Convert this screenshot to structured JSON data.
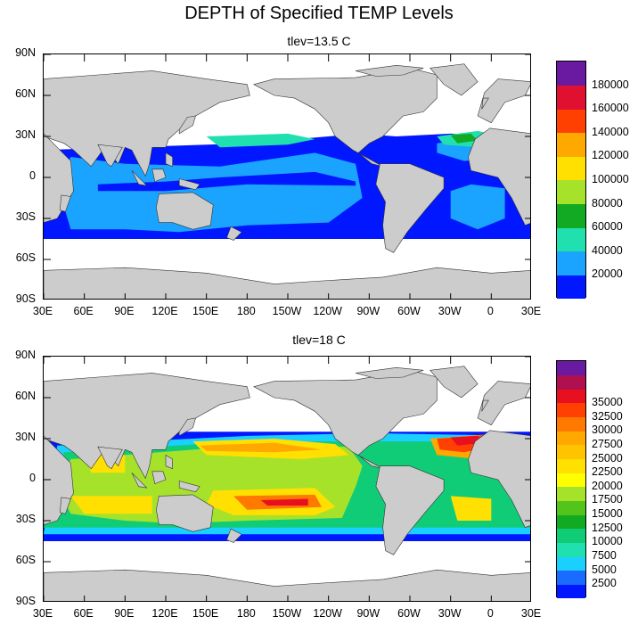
{
  "title": "DEPTH of Specified TEMP Levels",
  "panels": [
    {
      "subtitle": "tlev=13.5 C",
      "lat_labels": [
        "90N",
        "60N",
        "30N",
        "0",
        "30S",
        "60S",
        "90S"
      ],
      "lon_labels": [
        "30E",
        "60E",
        "90E",
        "120E",
        "150E",
        "180",
        "150W",
        "120W",
        "90W",
        "60W",
        "30W",
        "0",
        "30E"
      ],
      "colorbar": {
        "colors": [
          "#0017ff",
          "#1aa3ff",
          "#21e0b0",
          "#11aa22",
          "#a6e22a",
          "#ffe000",
          "#ffa800",
          "#ff4000",
          "#e01030",
          "#6a1aa0"
        ],
        "labels": [
          "20000",
          "40000",
          "60000",
          "80000",
          "100000",
          "120000",
          "140000",
          "160000",
          "180000"
        ]
      }
    },
    {
      "subtitle": "tlev=18 C",
      "lat_labels": [
        "90N",
        "60N",
        "30N",
        "0",
        "30S",
        "60S",
        "90S"
      ],
      "lon_labels": [
        "30E",
        "60E",
        "90E",
        "120E",
        "150E",
        "180",
        "150W",
        "120W",
        "90W",
        "60W",
        "30W",
        "0",
        "30E"
      ],
      "colorbar": {
        "colors": [
          "#0017ff",
          "#1a6bff",
          "#1ad0ff",
          "#21e0b0",
          "#11cc77",
          "#11aa22",
          "#52c41a",
          "#a6e22a",
          "#ffff00",
          "#ffe000",
          "#ffc400",
          "#ffa800",
          "#ff7800",
          "#ff4000",
          "#e81020",
          "#b01050",
          "#6a1aa0"
        ],
        "labels": [
          "2500",
          "5000",
          "7500",
          "10000",
          "12500",
          "15000",
          "17500",
          "20000",
          "22500",
          "25000",
          "27500",
          "30000",
          "32500",
          "35000"
        ]
      }
    }
  ]
}
